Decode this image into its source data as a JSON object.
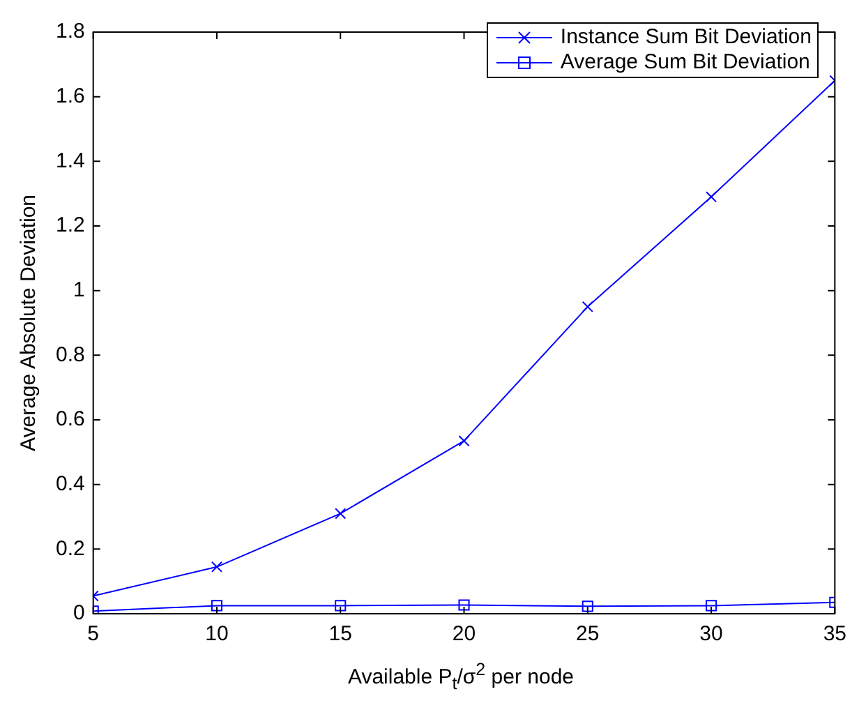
{
  "chart_data": {
    "type": "line",
    "xlabel": "Available P$_{t}$/σ$^{2}$ per node",
    "ylabel": "Average Absolute Deviation",
    "x": [
      5,
      10,
      15,
      20,
      25,
      30,
      35
    ],
    "series": [
      {
        "name": "Instance Sum Bit Deviation",
        "color": "#0000ff",
        "marker": "cross",
        "values": [
          0.055,
          0.145,
          0.31,
          0.535,
          0.95,
          1.29,
          1.65
        ]
      },
      {
        "name": "Average Sum Bit Deviation",
        "color": "#0000ff",
        "marker": "square",
        "values": [
          0.008,
          0.025,
          0.025,
          0.027,
          0.023,
          0.025,
          0.035
        ]
      }
    ],
    "xlim": [
      5,
      35
    ],
    "xticks": [
      5,
      10,
      15,
      20,
      25,
      30,
      35
    ],
    "ylim": [
      0,
      1.8
    ],
    "yticks": [
      0,
      0.2,
      0.4,
      0.6,
      0.8,
      1,
      1.2,
      1.4,
      1.6,
      1.8
    ],
    "grid": false,
    "legend": "top right",
    "line_style": "solid"
  }
}
